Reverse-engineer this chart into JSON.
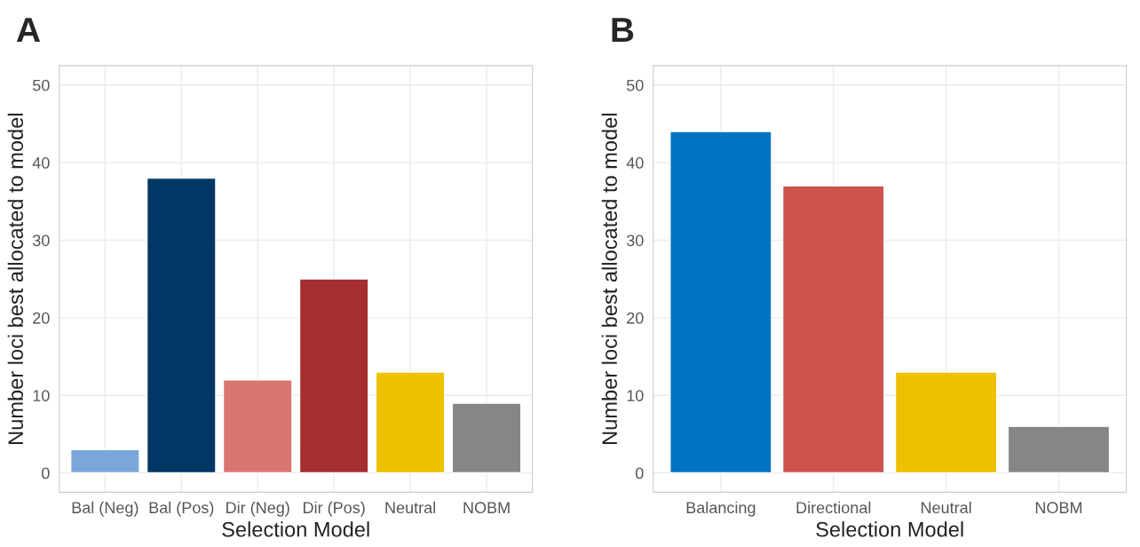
{
  "chart_data": [
    {
      "type": "bar",
      "title": "A",
      "xlabel": "Selection Model",
      "ylabel": "Number loci best allocated to model",
      "categories": [
        "Bal (Neg)",
        "Bal (Pos)",
        "Dir (Neg)",
        "Dir (Pos)",
        "Neutral",
        "NOBM"
      ],
      "values": [
        3,
        38,
        12,
        25,
        13,
        9
      ],
      "colors": [
        "#7aa6dc",
        "#003764",
        "#d8766f",
        "#a52e2f",
        "#efc000",
        "#868686"
      ],
      "ylim": [
        -2.5,
        52.5
      ],
      "yticks": [
        0,
        10,
        20,
        30,
        40,
        50
      ],
      "grid": true,
      "legend": false
    },
    {
      "type": "bar",
      "title": "B",
      "xlabel": "Selection Model",
      "ylabel": "Number loci best allocated to model",
      "categories": [
        "Balancing",
        "Directional",
        "Neutral",
        "NOBM"
      ],
      "values": [
        44,
        37,
        13,
        6
      ],
      "colors": [
        "#0073c2",
        "#cd534c",
        "#efc000",
        "#868686"
      ],
      "ylim": [
        -2.5,
        52.5
      ],
      "yticks": [
        0,
        10,
        20,
        30,
        40,
        50
      ],
      "grid": true,
      "legend": false
    }
  ]
}
